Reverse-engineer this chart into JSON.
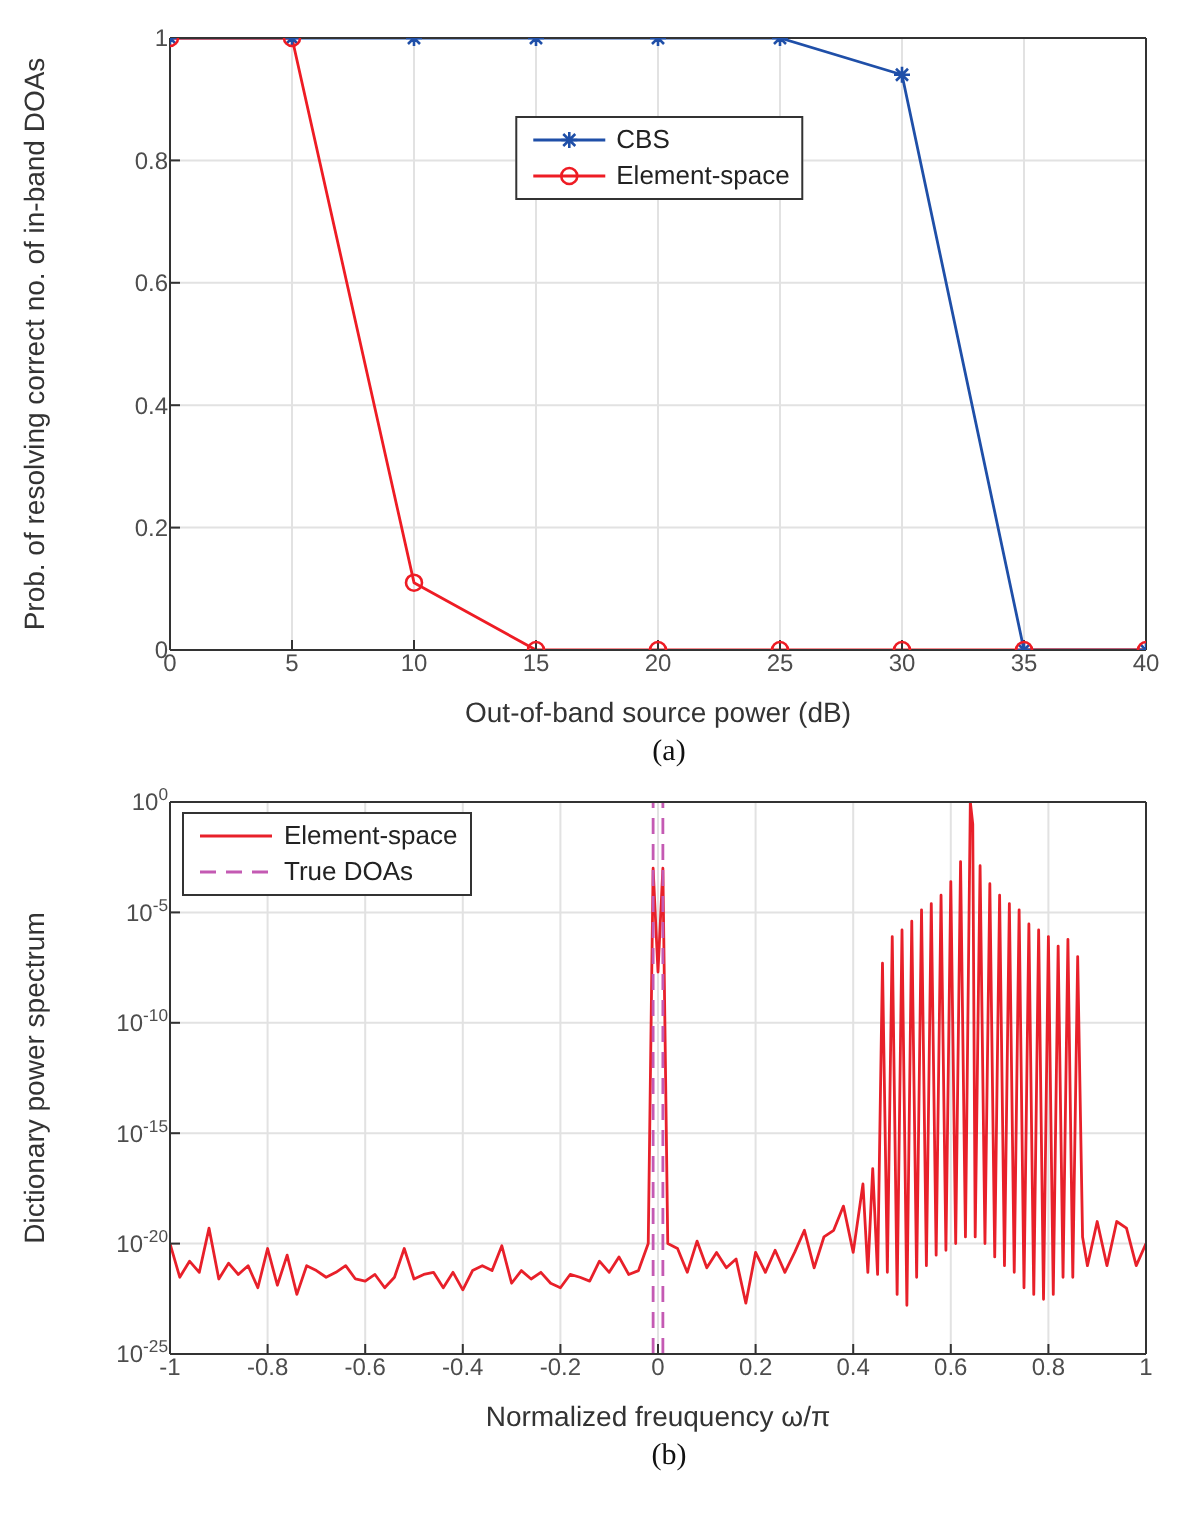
{
  "chart_data": [
    {
      "type": "line",
      "xlabel": "Out-of-band source power (dB)",
      "ylabel": "Prob. of resolving correct no. of in-band DOAs",
      "annotations": [
        "(a)"
      ],
      "x": [
        0,
        5,
        10,
        15,
        20,
        25,
        30,
        35,
        40
      ],
      "series": [
        {
          "name": "CBS",
          "color": "#1f4fa8",
          "marker": "cross",
          "values": [
            1,
            1,
            1,
            1,
            1,
            1,
            0.94,
            0,
            0
          ]
        },
        {
          "name": "Element-space",
          "color": "#ee1c24",
          "marker": "circle",
          "values": [
            1,
            1,
            0.11,
            0,
            0,
            0,
            0,
            0,
            0
          ]
        }
      ],
      "xlim": [
        0,
        40
      ],
      "xticks": [
        0,
        5,
        10,
        15,
        20,
        25,
        30,
        35,
        40
      ],
      "ylim": [
        0,
        1
      ],
      "yticks": [
        0,
        0.2,
        0.4,
        0.6,
        0.8,
        1
      ],
      "grid": true,
      "legend": "top"
    },
    {
      "type": "line",
      "xlabel": "Normalized freuquency ω/π",
      "ylabel": "Dictionary power spectrum",
      "annotations": [
        "(b)"
      ],
      "series": [
        {
          "name": "Element-space",
          "color": "#e8202a",
          "x": [
            -1,
            -0.98,
            -0.96,
            -0.94,
            -0.92,
            -0.9,
            -0.88,
            -0.86,
            -0.84,
            -0.82,
            -0.8,
            -0.78,
            -0.76,
            -0.74,
            -0.72,
            -0.7,
            -0.68,
            -0.66,
            -0.64,
            -0.62,
            -0.6,
            -0.58,
            -0.56,
            -0.54,
            -0.52,
            -0.5,
            -0.48,
            -0.46,
            -0.44,
            -0.42,
            -0.4,
            -0.38,
            -0.36,
            -0.34,
            -0.32,
            -0.3,
            -0.28,
            -0.26,
            -0.24,
            -0.22,
            -0.2,
            -0.18,
            -0.16,
            -0.14,
            -0.12,
            -0.1,
            -0.08,
            -0.06,
            -0.04,
            -0.02,
            -0.01,
            0,
            0.01,
            0.02,
            0.04,
            0.06,
            0.08,
            0.1,
            0.12,
            0.14,
            0.16,
            0.18,
            0.2,
            0.22,
            0.24,
            0.26,
            0.28,
            0.3,
            0.32,
            0.34,
            0.36,
            0.38,
            0.4,
            0.42,
            0.43,
            0.44,
            0.45,
            0.46,
            0.47,
            0.48,
            0.49,
            0.5,
            0.51,
            0.52,
            0.53,
            0.54,
            0.55,
            0.56,
            0.57,
            0.58,
            0.59,
            0.6,
            0.61,
            0.62,
            0.63,
            0.64,
            0.645,
            0.65,
            0.66,
            0.67,
            0.68,
            0.69,
            0.7,
            0.71,
            0.72,
            0.73,
            0.74,
            0.75,
            0.76,
            0.77,
            0.78,
            0.79,
            0.8,
            0.81,
            0.82,
            0.83,
            0.84,
            0.85,
            0.86,
            0.87,
            0.88,
            0.9,
            0.92,
            0.94,
            0.96,
            0.98,
            1
          ],
          "values": [
            1e-20,
            3e-22,
            1.6e-21,
            5e-22,
            5e-20,
            2.5e-22,
            1.3e-21,
            4e-22,
            1e-21,
            1e-22,
            6e-21,
            1.3e-22,
            3e-21,
            5e-23,
            1e-21,
            6e-22,
            3e-22,
            5e-22,
            1e-21,
            2.5e-22,
            2e-22,
            4e-22,
            1e-22,
            3e-22,
            6e-21,
            2.5e-22,
            4e-22,
            5e-22,
            1e-22,
            5e-22,
            8e-23,
            6e-22,
            1e-21,
            6e-22,
            8e-21,
            1.6e-22,
            6e-22,
            2.5e-22,
            5e-22,
            1.6e-22,
            1e-22,
            4e-22,
            3e-22,
            2e-22,
            1.6e-21,
            5e-22,
            2.5e-21,
            4e-22,
            6e-22,
            1e-20,
            0.001,
            2e-08,
            0.001,
            1e-20,
            6e-21,
            5e-22,
            1.3e-20,
            8e-22,
            4e-21,
            8e-22,
            2e-21,
            2e-23,
            4e-21,
            5e-22,
            5e-21,
            5e-22,
            4e-21,
            4e-20,
            8e-22,
            2e-20,
            4e-20,
            5e-19,
            4e-21,
            5e-18,
            5e-22,
            2.5e-17,
            4e-22,
            5e-08,
            5e-22,
            8e-07,
            5e-23,
            1.6e-06,
            1.6e-23,
            4e-06,
            3e-22,
            1.3e-05,
            1e-21,
            2.5e-05,
            3e-21,
            6e-05,
            5e-21,
            0.00025,
            1e-20,
            0.002,
            2e-20,
            1,
            0.1,
            2e-20,
            0.0013,
            1e-20,
            0.0002,
            2.5e-21,
            6e-05,
            1e-21,
            2.5e-05,
            5e-22,
            1.3e-05,
            1e-22,
            3e-06,
            5e-23,
            1.6e-06,
            3e-23,
            8e-07,
            5e-23,
            3e-07,
            3e-22,
            6e-07,
            3e-22,
            1e-07,
            2e-20,
            1e-21,
            1e-19,
            1e-21,
            1e-19,
            5e-20,
            1e-21,
            1e-20
          ]
        },
        {
          "name": "True DOAs",
          "color": "#c45ab3",
          "line_style": "dashed",
          "x": [
            -0.01,
            -0.01,
            0,
            0.01,
            0.01
          ],
          "values": [
            1e-25,
            1,
            null,
            1e-25,
            1
          ]
        }
      ],
      "xlim": [
        -1,
        1
      ],
      "xticks": [
        -1,
        -0.8,
        -0.6,
        -0.4,
        -0.2,
        0,
        0.2,
        0.4,
        0.6,
        0.8,
        1
      ],
      "ylim": [
        1e-25,
        1
      ],
      "yticks": [
        {
          "value": 1e-25,
          "label": "10$^{-25}$"
        },
        {
          "value": 1e-20,
          "label": "10$^{-20}$"
        },
        {
          "value": 1e-15,
          "label": "10$^{-15}$"
        },
        {
          "value": 1e-10,
          "label": "10$^{-10}$"
        },
        {
          "value": 1e-05,
          "label": "10$^{-5}$"
        },
        {
          "value": 1,
          "label": "10$^{0}$"
        }
      ],
      "log": "y",
      "grid": true,
      "legend": "top left"
    }
  ]
}
